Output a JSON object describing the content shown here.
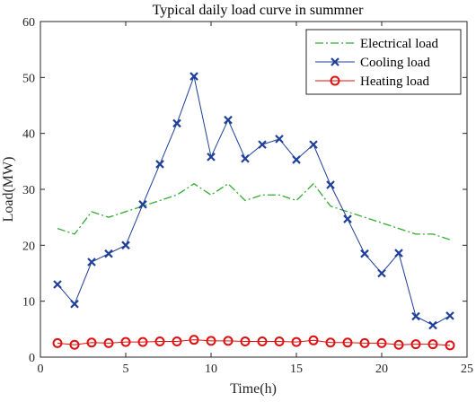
{
  "chart_data": {
    "type": "line",
    "title": "Typical daily load curve in summner",
    "xlabel": "Time(h)",
    "ylabel": "Load(MW)",
    "xlim": [
      0,
      25
    ],
    "ylim": [
      0,
      60
    ],
    "xticks": [
      0,
      5,
      10,
      15,
      20,
      25
    ],
    "yticks": [
      0,
      10,
      20,
      30,
      40,
      50,
      60
    ],
    "grid": false,
    "legend_position": "top-right",
    "x": [
      1,
      2,
      3,
      4,
      5,
      6,
      7,
      8,
      9,
      10,
      11,
      12,
      13,
      14,
      15,
      16,
      17,
      18,
      19,
      20,
      21,
      22,
      23,
      24
    ],
    "series": [
      {
        "name": "Electrical load",
        "color": "#33aa33",
        "line_style": "dash-dot",
        "marker": "none",
        "values": [
          23,
          22,
          26,
          25,
          26,
          27,
          28,
          29,
          31,
          29,
          31,
          28,
          29,
          29,
          28,
          31,
          27,
          26,
          25,
          24,
          23,
          22,
          22,
          21
        ]
      },
      {
        "name": "Cooling load",
        "color": "#1f3f99",
        "line_style": "solid",
        "marker": "x",
        "values": [
          13,
          9.5,
          17,
          18.5,
          20,
          27.3,
          34.5,
          41.8,
          50.2,
          35.8,
          42.4,
          35.5,
          38,
          39,
          35.3,
          38,
          30.8,
          24.7,
          18.5,
          15,
          18.6,
          7.3,
          5.7,
          7.4
        ]
      },
      {
        "name": "Heating load",
        "color": "#dd1111",
        "line_style": "solid",
        "marker": "circle",
        "values": [
          2.5,
          2.2,
          2.6,
          2.5,
          2.7,
          2.7,
          2.8,
          2.8,
          3.1,
          2.9,
          2.9,
          2.8,
          2.8,
          2.8,
          2.7,
          3.0,
          2.6,
          2.6,
          2.5,
          2.5,
          2.2,
          2.3,
          2.3,
          2.1
        ]
      }
    ]
  }
}
